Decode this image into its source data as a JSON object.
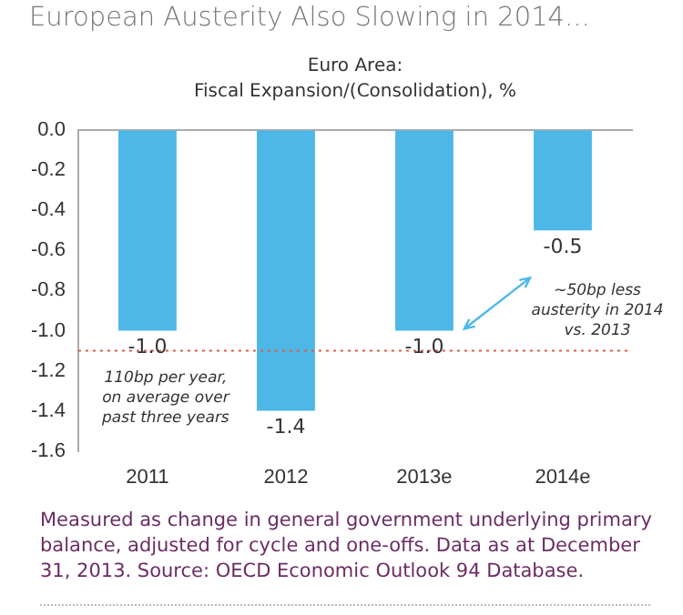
{
  "chart_data": {
    "type": "bar",
    "title": "European Austerity Also Slowing in 2014...",
    "subtitle": "Euro Area:\nFiscal Expansion/(Consolidation), %",
    "categories": [
      "2011",
      "2012",
      "2013e",
      "2014e"
    ],
    "values": [
      -1.0,
      -1.4,
      -1.0,
      -0.5
    ],
    "value_labels": [
      "-1.0",
      "-1.4",
      "-1.0",
      "-0.5"
    ],
    "color": "#4db8e8",
    "ylim": [
      -1.6,
      0
    ],
    "yticks": [
      {
        "value": 0,
        "label": "0.0"
      },
      {
        "value": -0.2,
        "label": "-0.2"
      },
      {
        "value": -0.4,
        "label": "-0.4"
      },
      {
        "value": -0.6,
        "label": "-0.6"
      },
      {
        "value": -0.8,
        "label": "-0.8"
      },
      {
        "value": -1.0,
        "label": "-1.0"
      },
      {
        "value": -1.2,
        "label": "-1.2"
      },
      {
        "value": -1.4,
        "label": "-1.4"
      },
      {
        "value": -1.6,
        "label": "-1.6"
      }
    ],
    "grid": false,
    "legend": false,
    "ref_lines": [
      {
        "axis": "y",
        "value": -1.1,
        "label": "110bp per year, on average over past three years",
        "color": "#e05a4a",
        "line_style": "dotted"
      }
    ],
    "annotations": [
      "~50bp less austerity in 2014 vs. 2013",
      "Measured as change in general government underlying primary balance, adjusted for cycle and one-offs. Data as at December 31, 2013. Source: OECD Economic Outlook 94 Database."
    ]
  }
}
